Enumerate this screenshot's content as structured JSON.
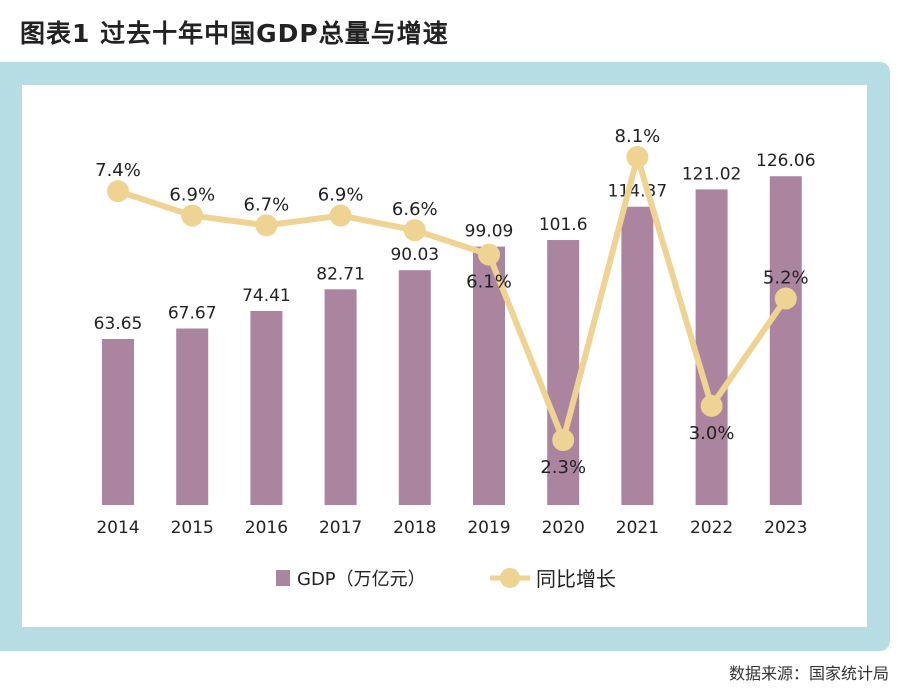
{
  "title": "图表1  过去十年中国GDP总量与增速",
  "source": "数据来源：国家统计局",
  "chart_data": {
    "type": "bar+line",
    "categories": [
      "2014",
      "2015",
      "2016",
      "2017",
      "2018",
      "2019",
      "2020",
      "2021",
      "2022",
      "2023"
    ],
    "series": [
      {
        "name": "GDP（万亿元）",
        "type": "bar",
        "color": "#ab859f",
        "values": [
          63.65,
          67.67,
          74.41,
          82.71,
          90.03,
          99.09,
          101.6,
          114.37,
          121.02,
          126.06
        ],
        "labels": [
          "63.65",
          "67.67",
          "74.41",
          "82.71",
          "90.03",
          "99.09",
          "101.6",
          "114.37",
          "121.02",
          "126.06"
        ]
      },
      {
        "name": "同比增长",
        "type": "line",
        "color": "#efd392",
        "unit": "%",
        "values": [
          7.4,
          6.9,
          6.7,
          6.9,
          6.6,
          6.1,
          2.3,
          8.1,
          3.0,
          5.2
        ],
        "labels": [
          "7.4%",
          "6.9%",
          "6.7%",
          "6.9%",
          "6.6%",
          "6.1%",
          "2.3%",
          "8.1%",
          "3.0%",
          "5.2%"
        ]
      }
    ],
    "legend": "bottom",
    "grid": false,
    "frame_color": "#b6dde3"
  }
}
